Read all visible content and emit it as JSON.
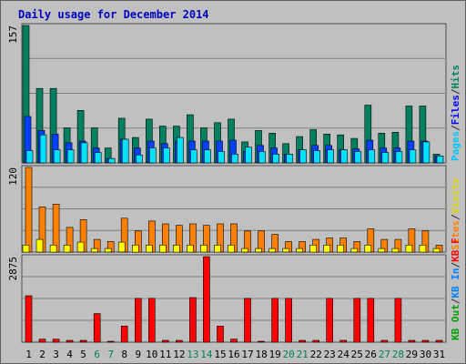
{
  "chart_data": {
    "type": "bar",
    "title": "Daily usage for December 2014",
    "days": [
      "1",
      "2",
      "3",
      "4",
      "5",
      "6",
      "7",
      "8",
      "9",
      "10",
      "11",
      "12",
      "13",
      "14",
      "15",
      "16",
      "17",
      "18",
      "19",
      "20",
      "21",
      "22",
      "23",
      "24",
      "25",
      "26",
      "27",
      "28",
      "29",
      "30",
      "31"
    ],
    "weekend_days": [
      "6",
      "7",
      "13",
      "14",
      "20",
      "21",
      "27",
      "28"
    ],
    "panels": [
      {
        "ymax_label": "157",
        "ylim": [
          0,
          157
        ],
        "side_labels": [
          {
            "text": "Hits",
            "color": "#00805c"
          },
          {
            "text": "/",
            "color": "#2b2b2b"
          },
          {
            "text": "Files",
            "color": "#0000ff"
          },
          {
            "text": "/",
            "color": "#2b2b2b"
          },
          {
            "text": "Pages",
            "color": "#00c8ff"
          }
        ],
        "series": [
          {
            "name": "Hits",
            "color": "#008060",
            "values": [
              157,
              85,
              85,
              40,
              60,
              40,
              17,
              51,
              29,
              50,
              42,
              42,
              55,
              40,
              46,
              50,
              24,
              37,
              34,
              22,
              30,
              38,
              33,
              32,
              28,
              66,
              34,
              35,
              65,
              65,
              10
            ]
          },
          {
            "name": "Files",
            "color": "#0040ff",
            "values": [
              53,
              37,
              33,
              23,
              25,
              17,
              5,
              27,
              17,
              25,
              22,
              25,
              25,
              25,
              25,
              26,
              13,
              20,
              17,
              10,
              15,
              20,
              20,
              15,
              16,
              26,
              17,
              17,
              25,
              25,
              8
            ]
          },
          {
            "name": "Pages",
            "color": "#00e0ff",
            "values": [
              14,
              32,
              15,
              15,
              23,
              12,
              5,
              27,
              9,
              17,
              17,
              29,
              15,
              15,
              13,
              10,
              18,
              13,
              10,
              10,
              15,
              14,
              15,
              15,
              13,
              15,
              12,
              13,
              15,
              24,
              8
            ]
          }
        ]
      },
      {
        "ymax_label": "120",
        "ylim": [
          0,
          120
        ],
        "side_labels": [
          {
            "text": "Visits",
            "color": "#d8d800"
          },
          {
            "text": "/",
            "color": "#2b2b2b"
          },
          {
            "text": "Sites",
            "color": "#ff8000"
          }
        ],
        "series": [
          {
            "name": "Visits",
            "color": "#ffff00",
            "values": [
              10,
              18,
              10,
              10,
              14,
              5,
              5,
              14,
              10,
              10,
              10,
              10,
              10,
              10,
              10,
              10,
              5,
              5,
              5,
              5,
              5,
              10,
              10,
              10,
              5,
              10,
              5,
              5,
              10,
              10,
              5
            ]
          },
          {
            "name": "Sites",
            "color": "#ff8000",
            "values": [
              120,
              64,
              68,
              35,
              46,
              18,
              15,
              48,
              30,
              44,
              40,
              38,
              40,
              38,
              40,
              40,
              30,
              30,
              25,
              15,
              15,
              18,
              20,
              20,
              15,
              33,
              18,
              18,
              33,
              30,
              10
            ]
          }
        ]
      },
      {
        "ymax_label": "2875",
        "ylim": [
          0,
          2875
        ],
        "side_labels": [
          {
            "text": "Visits",
            "color": "#ff0000"
          },
          {
            "text": "KB F",
            "color": "#ff0000"
          },
          {
            "text": "/",
            "color": "#2b2b2b"
          },
          {
            "text": "KB In",
            "color": "#0080ff"
          },
          {
            "text": "/",
            "color": "#2b2b2b"
          },
          {
            "text": "KB Out",
            "color": "#00a000"
          }
        ],
        "series": [
          {
            "name": "KB F",
            "color": "#ff0000",
            "values": [
              1560,
              100,
              100,
              60,
              60,
              960,
              20,
              540,
              1470,
              1470,
              60,
              60,
              1500,
              2875,
              540,
              100,
              1470,
              20,
              1470,
              1470,
              60,
              60,
              1470,
              60,
              1470,
              1470,
              60,
              1470,
              60,
              60,
              60
            ]
          }
        ]
      }
    ]
  }
}
